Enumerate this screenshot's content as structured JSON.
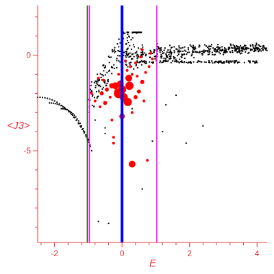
{
  "chart_data": {
    "type": "scatter",
    "xlabel": "E",
    "ylabel": "<J3>",
    "xlim": [
      -2.5,
      4.3
    ],
    "ylim": [
      -9.8,
      2.6
    ],
    "x_ticks": [
      -2,
      0,
      2,
      4
    ],
    "y_ticks": [
      0,
      -5
    ],
    "x_tick_labels": [
      "-2",
      "0",
      "2",
      "4"
    ],
    "y_tick_labels": [
      "0",
      "-5"
    ],
    "grid": false,
    "colors": {
      "axis": "#e8323a",
      "black_points": "#000000",
      "red_points": "#ff0000",
      "blue_line": "#0000ff",
      "magenta_line": "#ff00ff",
      "green_line": "#006400"
    },
    "vertical_lines": [
      {
        "x": -1.03,
        "color": "#006400",
        "width": 1.5
      },
      {
        "x": -0.97,
        "color": "#ff00ff",
        "width": 1.5
      },
      {
        "x": 0.0,
        "color": "#0000ff",
        "width": 4
      },
      {
        "x": 1.03,
        "color": "#ff00ff",
        "width": 1.5
      }
    ],
    "red_points": [
      [
        -0.2,
        -1.6,
        5
      ],
      [
        -0.05,
        -1.5,
        5
      ],
      [
        0.0,
        -1.8,
        6
      ],
      [
        -0.1,
        -2.0,
        7
      ],
      [
        0.05,
        -2.2,
        6
      ],
      [
        0.2,
        -1.2,
        5
      ],
      [
        0.22,
        -1.6,
        6
      ],
      [
        0.17,
        -2.45,
        6
      ],
      [
        0.3,
        -5.7,
        5
      ],
      [
        0.0,
        -3.2,
        4
      ],
      [
        -0.15,
        -1.9,
        4
      ],
      [
        -0.3,
        -1.6,
        4
      ],
      [
        -0.45,
        -1.8,
        3
      ],
      [
        -0.5,
        -2.5,
        3
      ],
      [
        0.5,
        -1.9,
        3
      ],
      [
        0.6,
        -1.4,
        3
      ],
      [
        0.4,
        -2.2,
        3
      ],
      [
        -0.6,
        -2.0,
        3
      ],
      [
        -0.8,
        -2.4,
        2
      ],
      [
        -0.7,
        -1.2,
        2
      ],
      [
        0.7,
        -0.9,
        2
      ],
      [
        0.4,
        -0.4,
        2
      ],
      [
        0.1,
        -0.3,
        2
      ],
      [
        0.55,
        -0.1,
        2
      ],
      [
        0.6,
        0.3,
        2
      ],
      [
        0.8,
        -0.6,
        2
      ],
      [
        0.3,
        -3.0,
        2
      ],
      [
        -0.3,
        -3.4,
        2
      ],
      [
        -0.25,
        -4.3,
        2
      ],
      [
        -0.25,
        -4.6,
        2
      ],
      [
        0.75,
        -5.5,
        2
      ],
      [
        0.9,
        -0.2,
        2
      ],
      [
        0.25,
        -0.6,
        2
      ],
      [
        -0.55,
        -1.3,
        2
      ],
      [
        -0.65,
        -2.7,
        2
      ],
      [
        0.15,
        -0.8,
        2
      ],
      [
        -0.9,
        -2.0,
        2
      ],
      [
        0.45,
        -1.1,
        2
      ],
      [
        -0.35,
        -2.2,
        2
      ],
      [
        0.65,
        -2.4,
        2
      ],
      [
        0.3,
        -1.0,
        2
      ],
      [
        -0.1,
        -1.0,
        2
      ],
      [
        0.85,
        0.1,
        2
      ]
    ]
  }
}
